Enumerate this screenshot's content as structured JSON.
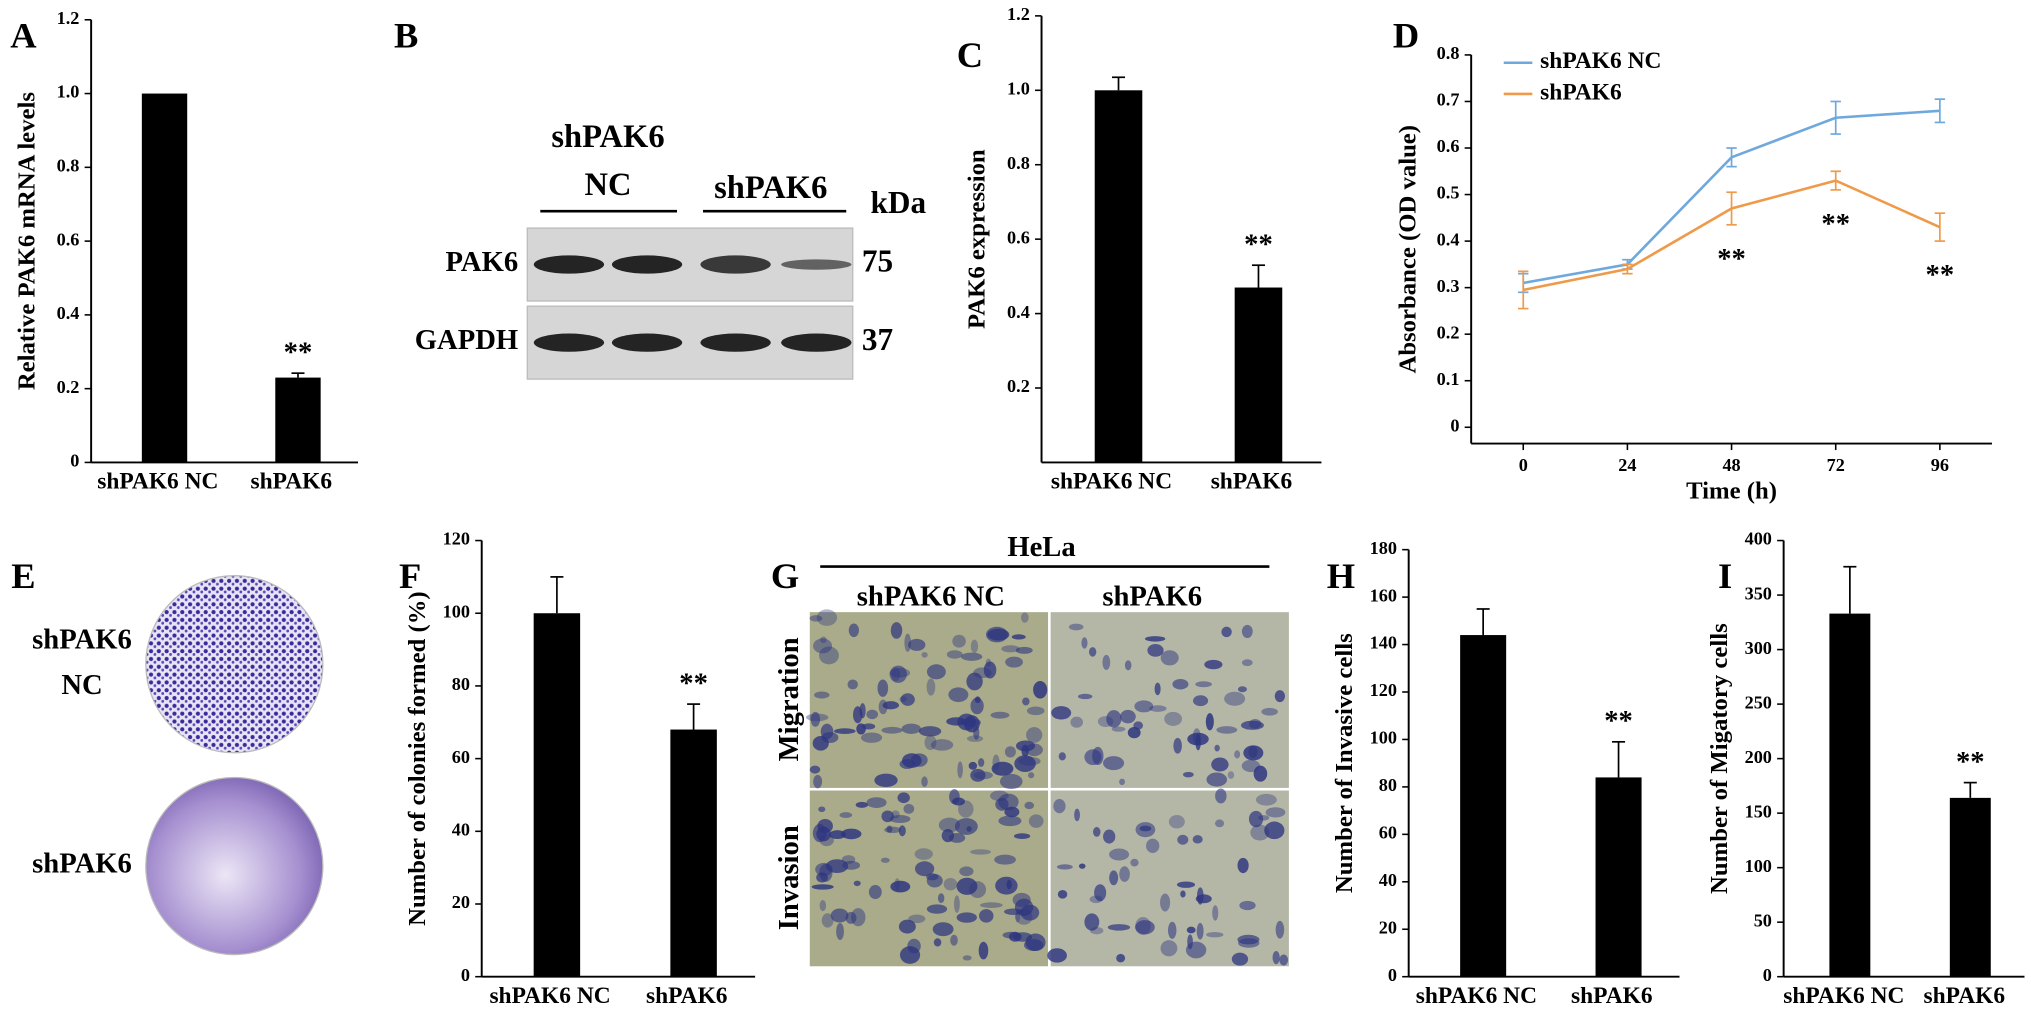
{
  "chart_data": [
    {
      "type": "bar",
      "label": "A",
      "ylabel": "Relative PAK6 mRNA levels",
      "categories": [
        "shPAK6 NC",
        "shPAK6"
      ],
      "values": [
        1.0,
        0.23
      ],
      "errors": [
        null,
        0.012
      ],
      "annotations": [
        null,
        "**"
      ],
      "color": "#000000",
      "ylim": [
        0,
        1.2
      ],
      "yticks": [
        0,
        0.2,
        0.4,
        0.6,
        0.8,
        {
          "value": 1,
          "label": "1.0"
        },
        1.2
      ]
    },
    {
      "type": "bar",
      "label": "C",
      "ylabel": "PAK6 expression",
      "categories": [
        "shPAK6 NC",
        "shPAK6"
      ],
      "values": [
        1.0,
        0.47
      ],
      "errors": [
        0.035,
        0.06
      ],
      "annotations": [
        null,
        "**"
      ],
      "color": "#000000",
      "ylim": [
        0,
        1.2
      ],
      "yticks": [
        0.2,
        0.4,
        0.6,
        0.8,
        {
          "value": 1,
          "label": "1.0"
        },
        1.2
      ]
    },
    {
      "type": "line",
      "label": "D",
      "xlabel": "Time (h)",
      "ylabel": "Absorbance (OD value)",
      "x": [
        0,
        24,
        48,
        72,
        96
      ],
      "xlim": [
        -12,
        108
      ],
      "xticks": [
        0,
        24,
        48,
        72,
        96
      ],
      "ylim": [
        -0.035,
        0.8
      ],
      "yticks": [
        0,
        0.1,
        0.2,
        0.3,
        0.4,
        0.5,
        0.6,
        0.7,
        0.8
      ],
      "legend": "upper left",
      "series": [
        {
          "name": "shPAK6  NC",
          "color": "#6fa8dc",
          "values": [
            0.31,
            0.35,
            0.58,
            0.665,
            0.68
          ],
          "errors": [
            0.02,
            0.01,
            0.02,
            0.035,
            0.025
          ],
          "annotations": [
            null,
            null,
            null,
            null,
            null
          ]
        },
        {
          "name": "shPAK6",
          "color": "#ef9a4a",
          "values": [
            0.295,
            0.34,
            0.47,
            0.53,
            0.43
          ],
          "errors": [
            0.04,
            0.01,
            0.035,
            0.02,
            0.03
          ],
          "annotations": [
            null,
            null,
            "**",
            "**",
            "**"
          ]
        }
      ]
    },
    {
      "type": "bar",
      "label": "F",
      "ylabel": "Number of colonies formed (%)",
      "categories": [
        "shPAK6 NC",
        "shPAK6"
      ],
      "values": [
        100,
        68
      ],
      "errors": [
        10,
        7
      ],
      "annotations": [
        null,
        "**"
      ],
      "color": "#000000",
      "ylim": [
        0,
        120
      ],
      "yticks": [
        0,
        20,
        40,
        60,
        80,
        100,
        120
      ]
    },
    {
      "type": "bar",
      "label": "H",
      "ylabel": "Number of Invasive cells",
      "categories": [
        "shPAK6 NC",
        "shPAK6"
      ],
      "values": [
        144,
        84
      ],
      "errors": [
        11,
        15
      ],
      "annotations": [
        null,
        "**"
      ],
      "color": "#000000",
      "ylim": [
        0,
        180
      ],
      "yticks": [
        0,
        20,
        40,
        60,
        80,
        100,
        120,
        140,
        160,
        180
      ]
    },
    {
      "type": "bar",
      "label": "I",
      "ylabel": "Number of Migatory cells",
      "categories": [
        "shPAK6 NC",
        "shPAK6"
      ],
      "values": [
        333,
        164
      ],
      "errors": [
        43,
        14
      ],
      "annotations": [
        null,
        "**"
      ],
      "color": "#000000",
      "ylim": [
        0,
        400
      ],
      "yticks": [
        0,
        50,
        100,
        150,
        200,
        250,
        300,
        350,
        400
      ]
    }
  ],
  "blot": {
    "label": "B",
    "groups": [
      [
        "shPAK6",
        "NC"
      ],
      [
        "shPAK6"
      ]
    ],
    "unit": "kDa",
    "rows": [
      {
        "name": "PAK6",
        "size": 75
      },
      {
        "name": "GAPDH",
        "size": 37
      }
    ]
  },
  "colony": {
    "label": "E",
    "rows": [
      [
        "shPAK6",
        "NC"
      ],
      [
        "shPAK6"
      ]
    ]
  },
  "transwell": {
    "label": "G",
    "title": "HeLa",
    "columns": [
      "shPAK6 NC",
      "shPAK6"
    ],
    "rows": [
      "Migration",
      "Invasion"
    ]
  }
}
